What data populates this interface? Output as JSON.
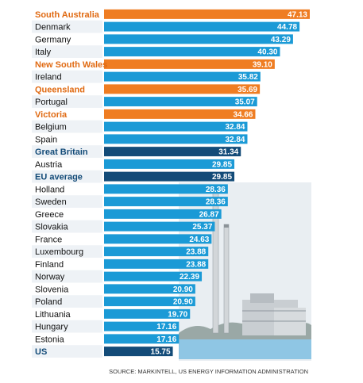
{
  "chart_data": {
    "type": "bar",
    "orientation": "horizontal",
    "categories": [
      "South Australia",
      "Denmark",
      "Germany",
      "Italy",
      "New South Wales",
      "Ireland",
      "Queensland",
      "Portugal",
      "Victoria",
      "Belgium",
      "Spain",
      "Great Britain",
      "Austria",
      "EU average",
      "Holland",
      "Sweden",
      "Greece",
      "Slovakia",
      "France",
      "Luxembourg",
      "Finland",
      "Norway",
      "Slovenia",
      "Poland",
      "Lithuania",
      "Hungary",
      "Estonia",
      "US"
    ],
    "values": [
      47.13,
      44.78,
      43.29,
      40.3,
      39.1,
      35.82,
      35.69,
      35.07,
      34.66,
      32.84,
      32.84,
      31.34,
      29.85,
      29.85,
      28.36,
      28.36,
      26.87,
      25.37,
      24.63,
      23.88,
      23.88,
      22.39,
      20.9,
      20.9,
      19.7,
      17.16,
      17.16,
      15.75
    ],
    "value_labels": [
      "47.13",
      "44.78",
      "43.29",
      "40.30",
      "39.10",
      "35.82",
      "35.69",
      "35.07",
      "34.66",
      "32.84",
      "32.84",
      "31.34",
      "29.85",
      "29.85",
      "28.36",
      "28.36",
      "26.87",
      "25.37",
      "24.63",
      "23.88",
      "23.88",
      "22.39",
      "20.90",
      "20.90",
      "19.70",
      "17.16",
      "17.16",
      "15.75"
    ],
    "highlight": [
      "australia",
      "none",
      "none",
      "none",
      "australia",
      "none",
      "australia",
      "none",
      "australia",
      "none",
      "none",
      "reference",
      "none",
      "reference",
      "none",
      "none",
      "none",
      "none",
      "none",
      "none",
      "none",
      "none",
      "none",
      "none",
      "none",
      "none",
      "none",
      "reference"
    ],
    "xlim": [
      0,
      48
    ],
    "source": "SOURCE: MARKINTELL, US ENERGY INFORMATION ADMINISTRATION"
  },
  "colors": {
    "default_bar": "#1b9ad6",
    "australia_bar": "#ef7d22",
    "reference_bar": "#134b78",
    "australia_label": "#e06a12",
    "reference_label": "#134b78",
    "default_label": "#111111",
    "row_band": "#eef2f6"
  }
}
